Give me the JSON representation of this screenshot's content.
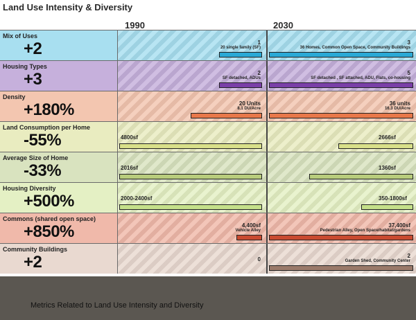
{
  "title": "Land Use Intensity & Diversity",
  "caption": "Metrics Related to Land Use Intensity and Diversity",
  "chart_data": {
    "type": "bar",
    "columns": [
      "1990",
      "2030"
    ],
    "rows": [
      {
        "metric": "Mix of Uses",
        "change": "+2",
        "color": "#a8dff0",
        "bar_color": "#2aa9d6",
        "v1990": {
          "label": "1",
          "note": "20 single family (SF)",
          "value": 0.3
        },
        "v2030": {
          "label": "3",
          "note": "36 Homes, Common Open Space, Community Buildings",
          "value": 1.0
        }
      },
      {
        "metric": "Housing Types",
        "change": "+3",
        "color": "#c6b0dc",
        "bar_color": "#7a3fa8",
        "v1990": {
          "label": "2",
          "note": "SF detached, ADUs",
          "value": 0.3
        },
        "v2030": {
          "label": "5",
          "note": "SF detached , SF attached, ADU, Flats, co-housing",
          "value": 1.0
        }
      },
      {
        "metric": "Density",
        "change": "+180%",
        "color": "#f3c6b0",
        "bar_color": "#e8784a",
        "v1990": {
          "label": "20 Units",
          "note": "8.1 DU/Acre",
          "value": 0.5
        },
        "v2030": {
          "label": "36 units",
          "note": "16.3 DU/Acre",
          "value": 1.0
        }
      },
      {
        "metric": "Land Consumption per Home",
        "change": "-55%",
        "color": "#e9ecc0",
        "bar_color": "#d9e08a",
        "v1990": {
          "label": "4800sf",
          "note": "",
          "value": 1.0
        },
        "v2030": {
          "label": "2666sf",
          "note": "",
          "value": 0.52
        }
      },
      {
        "metric": "Average Size of Home",
        "change": "-33%",
        "color": "#d9e3bf",
        "bar_color": "#b8cc7c",
        "v1990": {
          "label": "2016sf",
          "note": "",
          "value": 1.0
        },
        "v2030": {
          "label": "1360sf",
          "note": "",
          "value": 0.72
        }
      },
      {
        "metric": "Housing Diversity",
        "change": "+500%",
        "color": "#e4f0c4",
        "bar_color": "#c5e08a",
        "v1990": {
          "label": "2000-2400sf",
          "note": "",
          "value": 1.0
        },
        "v2030": {
          "label": "350-1800sf",
          "note": "",
          "value": 0.36
        }
      },
      {
        "metric": "Commons (shared open space)",
        "change": "+850%",
        "color": "#f0b9aa",
        "bar_color": "#c94a30",
        "v1990": {
          "label": "4,400sf",
          "note": "Vehicle Alley",
          "value": 0.18
        },
        "v2030": {
          "label": "37,400sf",
          "note": "Pedestrian Alley, Open Space/habitat/gardens",
          "value": 1.0
        }
      },
      {
        "metric": "Community Buildings",
        "change": "+2",
        "color": "#e9d9d0",
        "bar_color": "#9a7a6a",
        "v1990": {
          "label": "0",
          "note": "",
          "value": 0.0
        },
        "v2030": {
          "label": "2",
          "note": "Garden Shed, Community  Center",
          "value": 1.0
        }
      }
    ]
  }
}
